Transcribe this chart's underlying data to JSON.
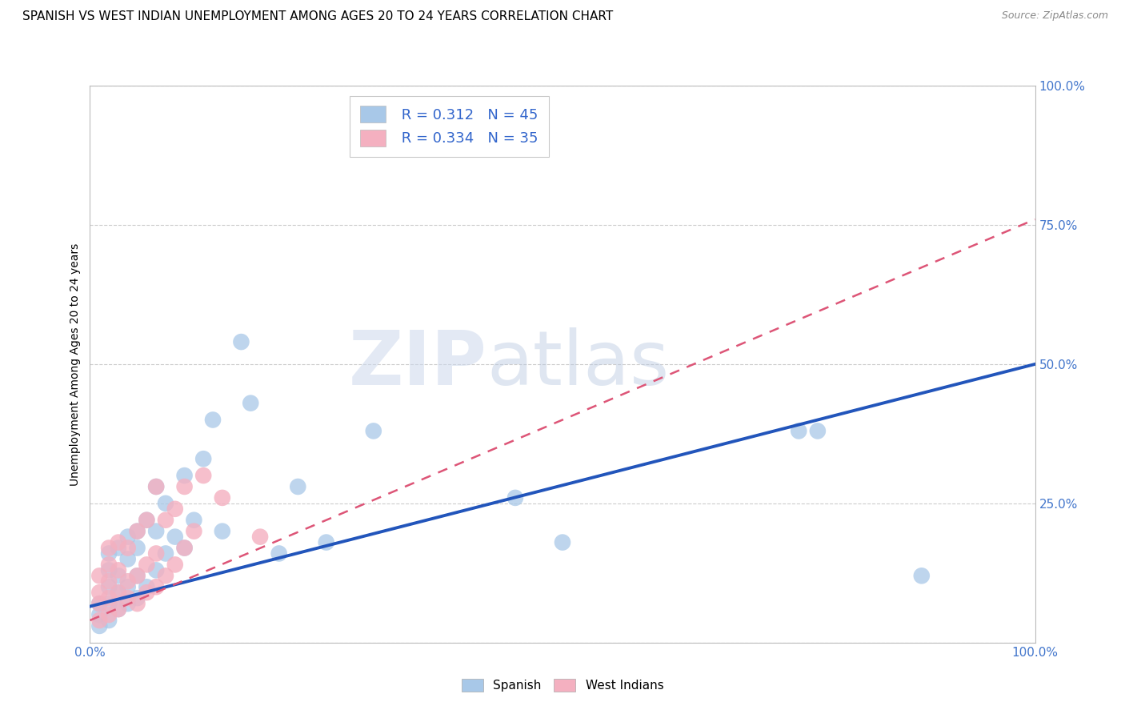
{
  "title": "SPANISH VS WEST INDIAN UNEMPLOYMENT AMONG AGES 20 TO 24 YEARS CORRELATION CHART",
  "source": "Source: ZipAtlas.com",
  "ylabel": "Unemployment Among Ages 20 to 24 years",
  "xlim": [
    0.0,
    1.0
  ],
  "ylim": [
    0.0,
    1.0
  ],
  "xticks": [
    0.0,
    0.1,
    0.2,
    0.3,
    0.4,
    0.5,
    0.6,
    0.7,
    0.8,
    0.9,
    1.0
  ],
  "yticks": [
    0.0,
    0.25,
    0.5,
    0.75,
    1.0
  ],
  "xticklabels": [
    "0.0%",
    "",
    "",
    "",
    "",
    "",
    "",
    "",
    "",
    "",
    "100.0%"
  ],
  "yticklabels": [
    "",
    "25.0%",
    "50.0%",
    "75.0%",
    "100.0%"
  ],
  "legend_r_spanish": "R = 0.312",
  "legend_n_spanish": "N = 45",
  "legend_r_west_indian": "R = 0.334",
  "legend_n_west_indian": "N = 35",
  "spanish_color": "#a8c8e8",
  "west_indian_color": "#f4b0c0",
  "spanish_line_color": "#2255bb",
  "west_indian_line_color": "#dd5577",
  "watermark_zip": "ZIP",
  "watermark_atlas": "atlas",
  "spanish_line_y0": 0.065,
  "spanish_line_y1": 0.5,
  "west_indian_line_y0": 0.04,
  "west_indian_line_y1": 0.76,
  "spanish_x": [
    0.01,
    0.01,
    0.01,
    0.02,
    0.02,
    0.02,
    0.02,
    0.02,
    0.03,
    0.03,
    0.03,
    0.03,
    0.04,
    0.04,
    0.04,
    0.04,
    0.05,
    0.05,
    0.05,
    0.05,
    0.06,
    0.06,
    0.07,
    0.07,
    0.07,
    0.08,
    0.08,
    0.09,
    0.1,
    0.1,
    0.11,
    0.12,
    0.13,
    0.14,
    0.16,
    0.17,
    0.2,
    0.22,
    0.25,
    0.3,
    0.45,
    0.5,
    0.75,
    0.77,
    0.88
  ],
  "spanish_y": [
    0.03,
    0.05,
    0.07,
    0.04,
    0.07,
    0.1,
    0.13,
    0.16,
    0.06,
    0.09,
    0.12,
    0.17,
    0.07,
    0.1,
    0.15,
    0.19,
    0.08,
    0.12,
    0.17,
    0.2,
    0.1,
    0.22,
    0.13,
    0.2,
    0.28,
    0.16,
    0.25,
    0.19,
    0.17,
    0.3,
    0.22,
    0.33,
    0.4,
    0.2,
    0.54,
    0.43,
    0.16,
    0.28,
    0.18,
    0.38,
    0.26,
    0.18,
    0.38,
    0.38,
    0.12
  ],
  "west_indian_x": [
    0.01,
    0.01,
    0.01,
    0.01,
    0.02,
    0.02,
    0.02,
    0.02,
    0.02,
    0.03,
    0.03,
    0.03,
    0.03,
    0.04,
    0.04,
    0.04,
    0.05,
    0.05,
    0.05,
    0.06,
    0.06,
    0.06,
    0.07,
    0.07,
    0.07,
    0.08,
    0.08,
    0.09,
    0.09,
    0.1,
    0.1,
    0.11,
    0.12,
    0.14,
    0.18
  ],
  "west_indian_y": [
    0.04,
    0.07,
    0.09,
    0.12,
    0.05,
    0.08,
    0.11,
    0.14,
    0.17,
    0.06,
    0.09,
    0.13,
    0.18,
    0.08,
    0.11,
    0.17,
    0.07,
    0.12,
    0.2,
    0.09,
    0.14,
    0.22,
    0.1,
    0.16,
    0.28,
    0.12,
    0.22,
    0.14,
    0.24,
    0.17,
    0.28,
    0.2,
    0.3,
    0.26,
    0.19
  ]
}
